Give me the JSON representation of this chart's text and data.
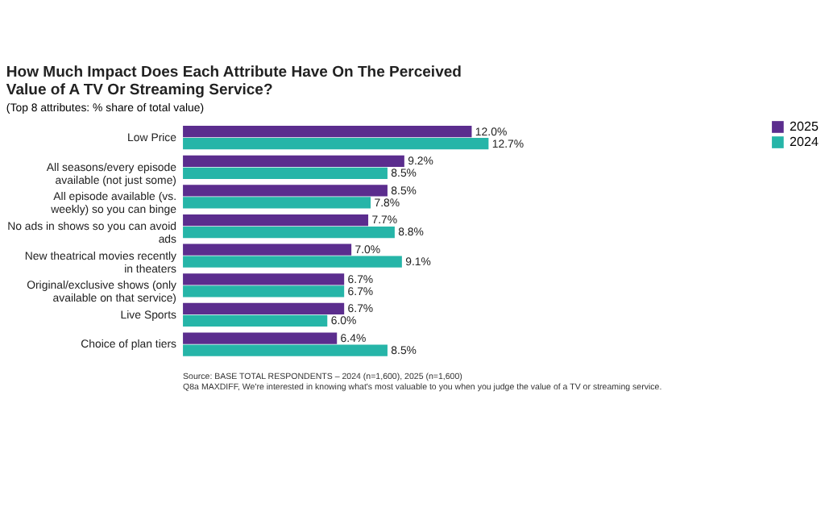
{
  "chart_data": {
    "type": "bar",
    "orientation": "horizontal",
    "title": "How Much Impact Does Each Attribute Have On The Perceived Value of A TV Or Streaming Service?",
    "subtitle": "(Top 8 attributes: % share of total value)",
    "categories": [
      "Low Price",
      "All seasons/every episode available (not just some)",
      "All episode available (vs. weekly) so you can binge",
      "No ads in shows so you can avoid ads",
      "New theatrical movies recently in theaters",
      "Original/exclusive shows (only available on that service)",
      "Live Sports",
      "Choice of plan tiers"
    ],
    "series": [
      {
        "name": "2025",
        "color": "#5b2d8e",
        "values": [
          12.0,
          9.2,
          8.5,
          7.7,
          7.0,
          6.7,
          6.7,
          6.4
        ],
        "value_labels": [
          "12.0%",
          "9.2%",
          "8.5%",
          "7.7%",
          "7.0%",
          "6.7%",
          "6.7%",
          "6.4%"
        ]
      },
      {
        "name": "2024",
        "color": "#26b5a8",
        "values": [
          12.7,
          8.5,
          7.8,
          8.8,
          9.1,
          6.7,
          6.0,
          8.5
        ],
        "value_labels": [
          "12.7%",
          "8.5%",
          "7.8%",
          "8.8%",
          "9.1%",
          "6.7%",
          "6.0%",
          "8.5%"
        ]
      }
    ],
    "legend": "right",
    "grid": false,
    "annotations": [
      "Source: BASE TOTAL RESPONDENTS – 2024 (n=1,600), 2025 (n=1,600)",
      "Q8a MAXDIFF, We're interested in knowing what's most valuable to you when you judge the value of a TV or streaming service."
    ]
  }
}
